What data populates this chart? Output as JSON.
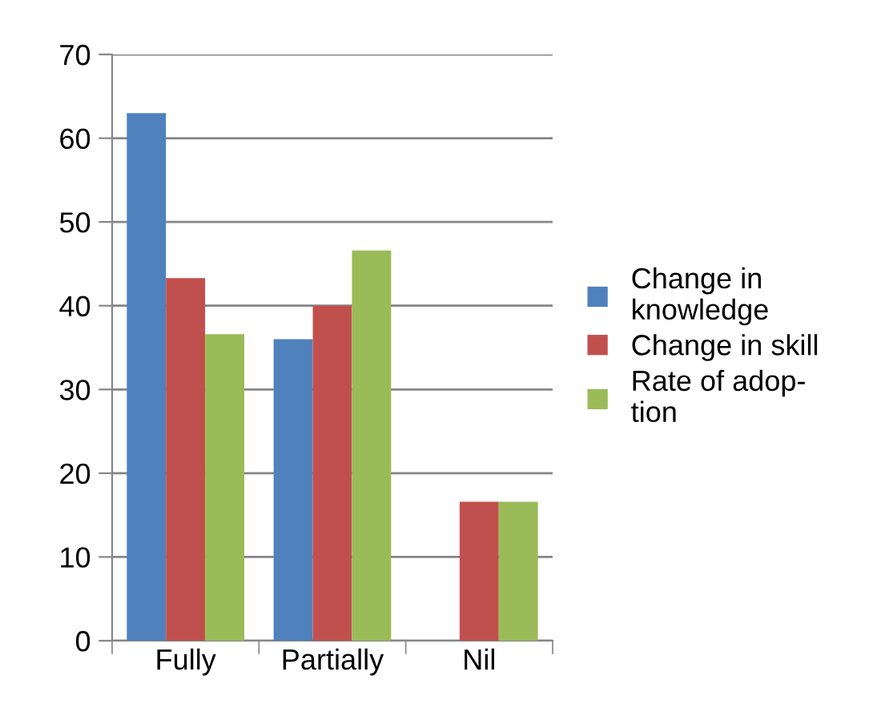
{
  "chart_data": {
    "type": "bar",
    "categories": [
      "Fully",
      "Partially",
      "Nil"
    ],
    "series": [
      {
        "name": "Change in\nknowledge",
        "color": "#4f81bd",
        "values": [
          63,
          36,
          0
        ]
      },
      {
        "name": "Change in skill",
        "color": "#c0504d",
        "values": [
          43.3,
          40,
          16.6
        ]
      },
      {
        "name": "Rate of adop-\ntion",
        "color": "#9bbb59",
        "values": [
          36.6,
          46.6,
          16.6
        ]
      }
    ],
    "ylim": [
      0,
      70
    ],
    "yticks": [
      0,
      10,
      20,
      30,
      40,
      50,
      60,
      70
    ],
    "grid": "y",
    "legend": "right"
  }
}
